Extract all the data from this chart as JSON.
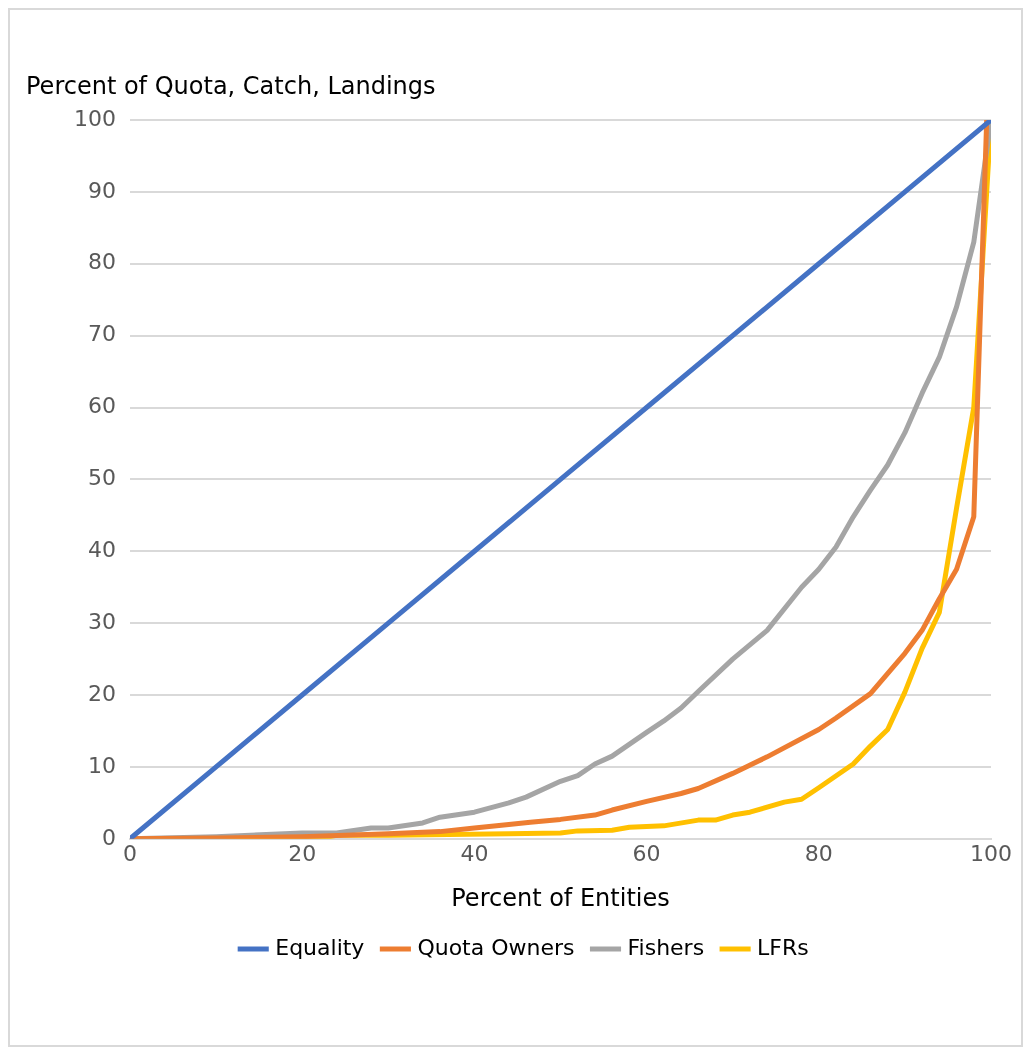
{
  "chart_data": {
    "type": "line",
    "ylabel": "Percent of Quota, Catch, Landings",
    "xlabel": "Percent of Entities",
    "xlim": [
      0,
      100
    ],
    "xticks": [
      0,
      20,
      40,
      60,
      80,
      100
    ],
    "ylim": [
      0,
      100
    ],
    "yticks": [
      0,
      10,
      20,
      30,
      40,
      50,
      60,
      70,
      80,
      90,
      100
    ],
    "grid": "y",
    "legend": "bottom",
    "marker": "none",
    "line_style": "solid",
    "series": [
      {
        "name": "Equality",
        "color": "#4472c4",
        "x": [
          0,
          10,
          20,
          30,
          40,
          50,
          60,
          70,
          80,
          90,
          100
        ],
        "values": [
          0,
          10,
          20,
          30,
          40,
          50,
          60,
          70,
          80,
          90,
          100
        ]
      },
      {
        "name": "Quota Owners",
        "color": "#ed7d31",
        "x": [
          0,
          10,
          20,
          30,
          36,
          40,
          44,
          46.5,
          50,
          54,
          56,
          60,
          64,
          66,
          70,
          74,
          80,
          82,
          86,
          90,
          92,
          94,
          96,
          98,
          99.5
        ],
        "values": [
          0,
          0.1,
          0.3,
          0.7,
          1.0,
          1.5,
          2.0,
          2.3,
          2.7,
          3.3,
          4.0,
          5.2,
          6.3,
          7.0,
          9.1,
          11.4,
          15.2,
          16.8,
          20.2,
          25.8,
          29,
          33.4,
          37.5,
          44.8,
          100
        ]
      },
      {
        "name": "Fishers",
        "color": "#a5a5a5",
        "x": [
          0,
          10,
          20,
          24,
          28,
          30,
          34,
          36,
          40,
          44,
          46,
          50,
          52,
          54,
          56,
          60,
          62,
          64,
          66,
          70,
          74,
          78,
          80,
          82,
          84,
          86,
          88,
          90,
          92,
          94,
          96,
          98,
          100
        ],
        "values": [
          0,
          0.3,
          0.8,
          0.8,
          1.5,
          1.5,
          2.2,
          3.0,
          3.7,
          5.0,
          5.8,
          8.0,
          8.8,
          10.4,
          11.5,
          14.8,
          16.4,
          18.2,
          20.5,
          25,
          29,
          35,
          37.5,
          40.6,
          44.8,
          48.5,
          52,
          56.5,
          62,
          67,
          74,
          83,
          100
        ]
      },
      {
        "name": "LFRs",
        "color": "#ffc000",
        "x": [
          0,
          22,
          24,
          30,
          44,
          50,
          52,
          56,
          58,
          62,
          66,
          68,
          70,
          72,
          76,
          78,
          80,
          84,
          86,
          88,
          90,
          92,
          94,
          96,
          98,
          100
        ],
        "values": [
          0,
          0,
          0.5,
          0.5,
          0.7,
          0.8,
          1.1,
          1.2,
          1.6,
          1.8,
          2.6,
          2.6,
          3.3,
          3.7,
          5.1,
          5.5,
          7.1,
          10.4,
          12.9,
          15.2,
          20.4,
          26.5,
          31.5,
          46,
          60,
          100
        ]
      }
    ]
  }
}
